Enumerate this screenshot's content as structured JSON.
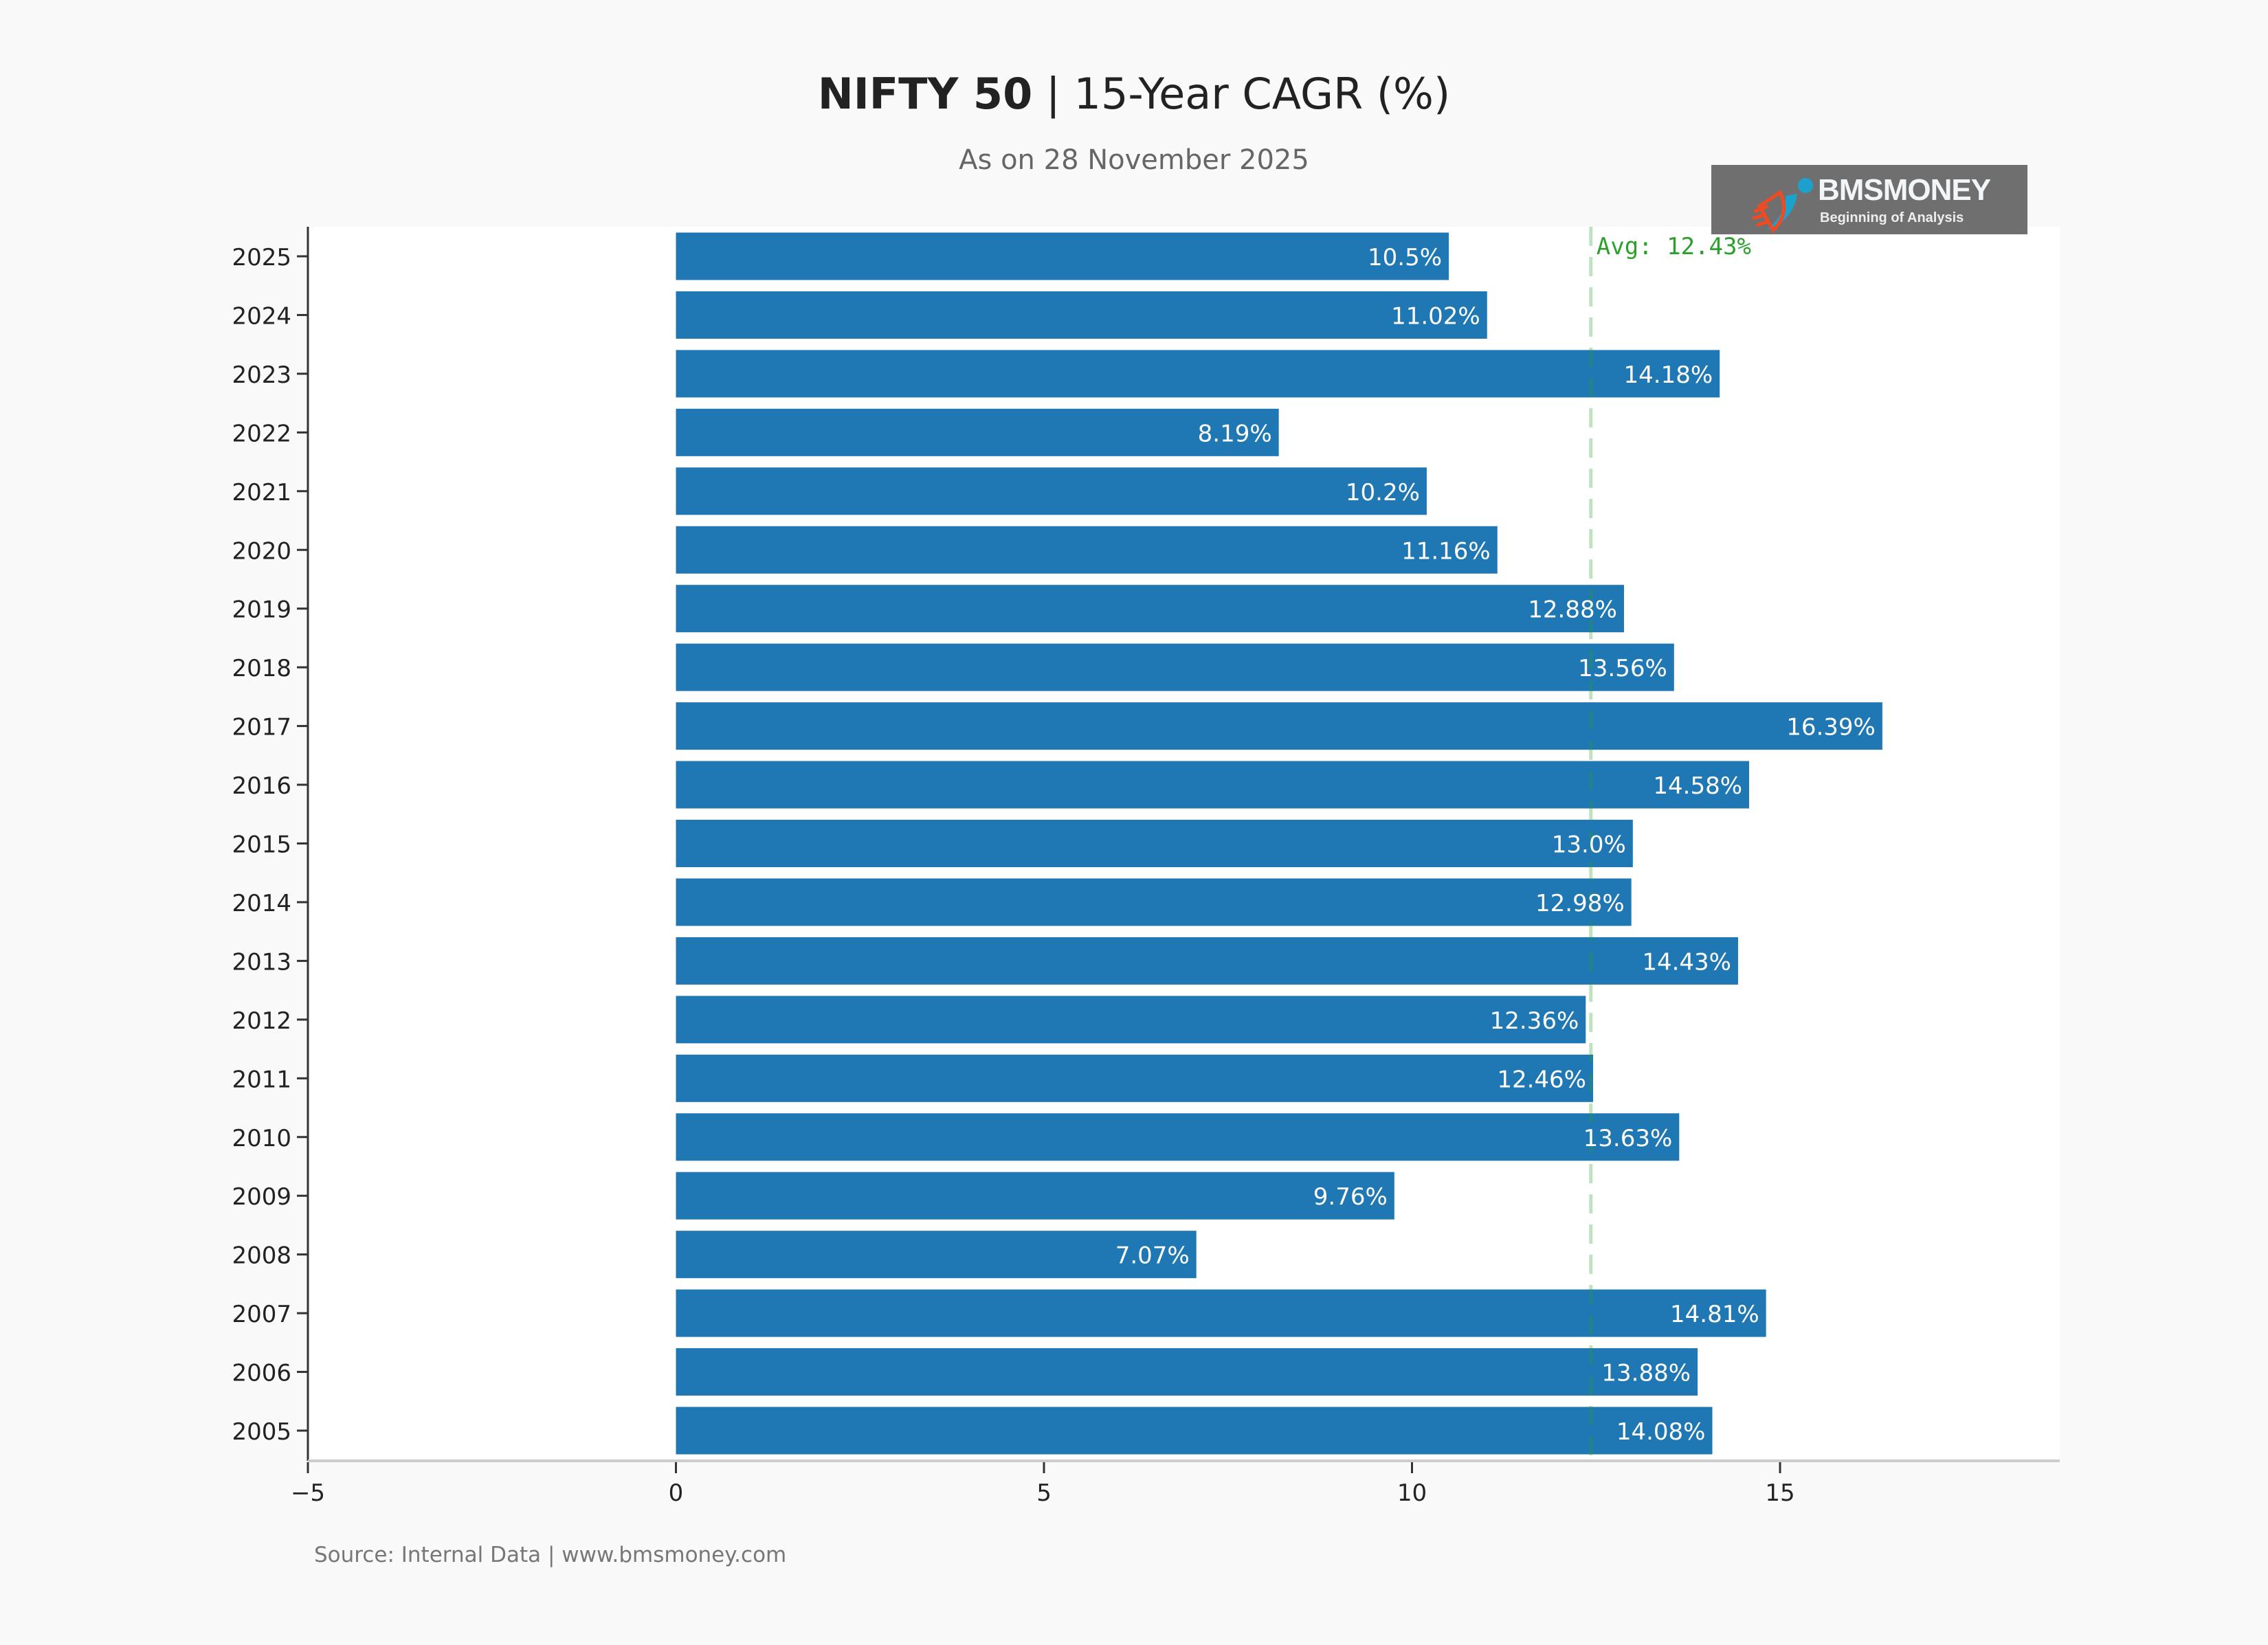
{
  "title": {
    "bold": "NIFTY 50",
    "rest": " | 15-Year CAGR (%)"
  },
  "subtitle": "As on 28 November 2025",
  "source": "Source: Internal Data | www.bmsmoney.com",
  "logo": {
    "name": "BMSMONEY",
    "tagline": "Beginning of Analysis"
  },
  "colors": {
    "bar": "#1f77b4",
    "avg_line": "#2ca02c",
    "background": "#f9f9f9",
    "plot_bg": "#ffffff"
  },
  "chart_data": {
    "type": "bar",
    "orientation": "horizontal",
    "title": "NIFTY 50 | 15-Year CAGR (%)",
    "categories": [
      "2025",
      "2024",
      "2023",
      "2022",
      "2021",
      "2020",
      "2019",
      "2018",
      "2017",
      "2016",
      "2015",
      "2014",
      "2013",
      "2012",
      "2011",
      "2010",
      "2009",
      "2008",
      "2007",
      "2006",
      "2005"
    ],
    "values": [
      10.5,
      11.02,
      14.18,
      8.19,
      10.2,
      11.16,
      12.88,
      13.56,
      16.39,
      14.58,
      13.0,
      12.98,
      14.43,
      12.36,
      12.46,
      13.63,
      9.76,
      7.07,
      14.81,
      13.88,
      14.08
    ],
    "data_labels": [
      "10.5%",
      "11.02%",
      "14.18%",
      "8.19%",
      "10.2%",
      "11.16%",
      "12.88%",
      "13.56%",
      "16.39%",
      "14.58%",
      "13.0%",
      "12.98%",
      "14.43%",
      "12.36%",
      "12.46%",
      "13.63%",
      "9.76%",
      "7.07%",
      "14.81%",
      "13.88%",
      "14.08%"
    ],
    "xlim": [
      -5,
      18.8
    ],
    "xticks": [
      -5,
      0,
      5,
      10,
      15
    ],
    "xtick_labels": [
      "−5",
      "0",
      "5",
      "10",
      "15"
    ],
    "average": 12.43,
    "average_label": "Avg: 12.43%",
    "grid": false,
    "legend": "none"
  }
}
